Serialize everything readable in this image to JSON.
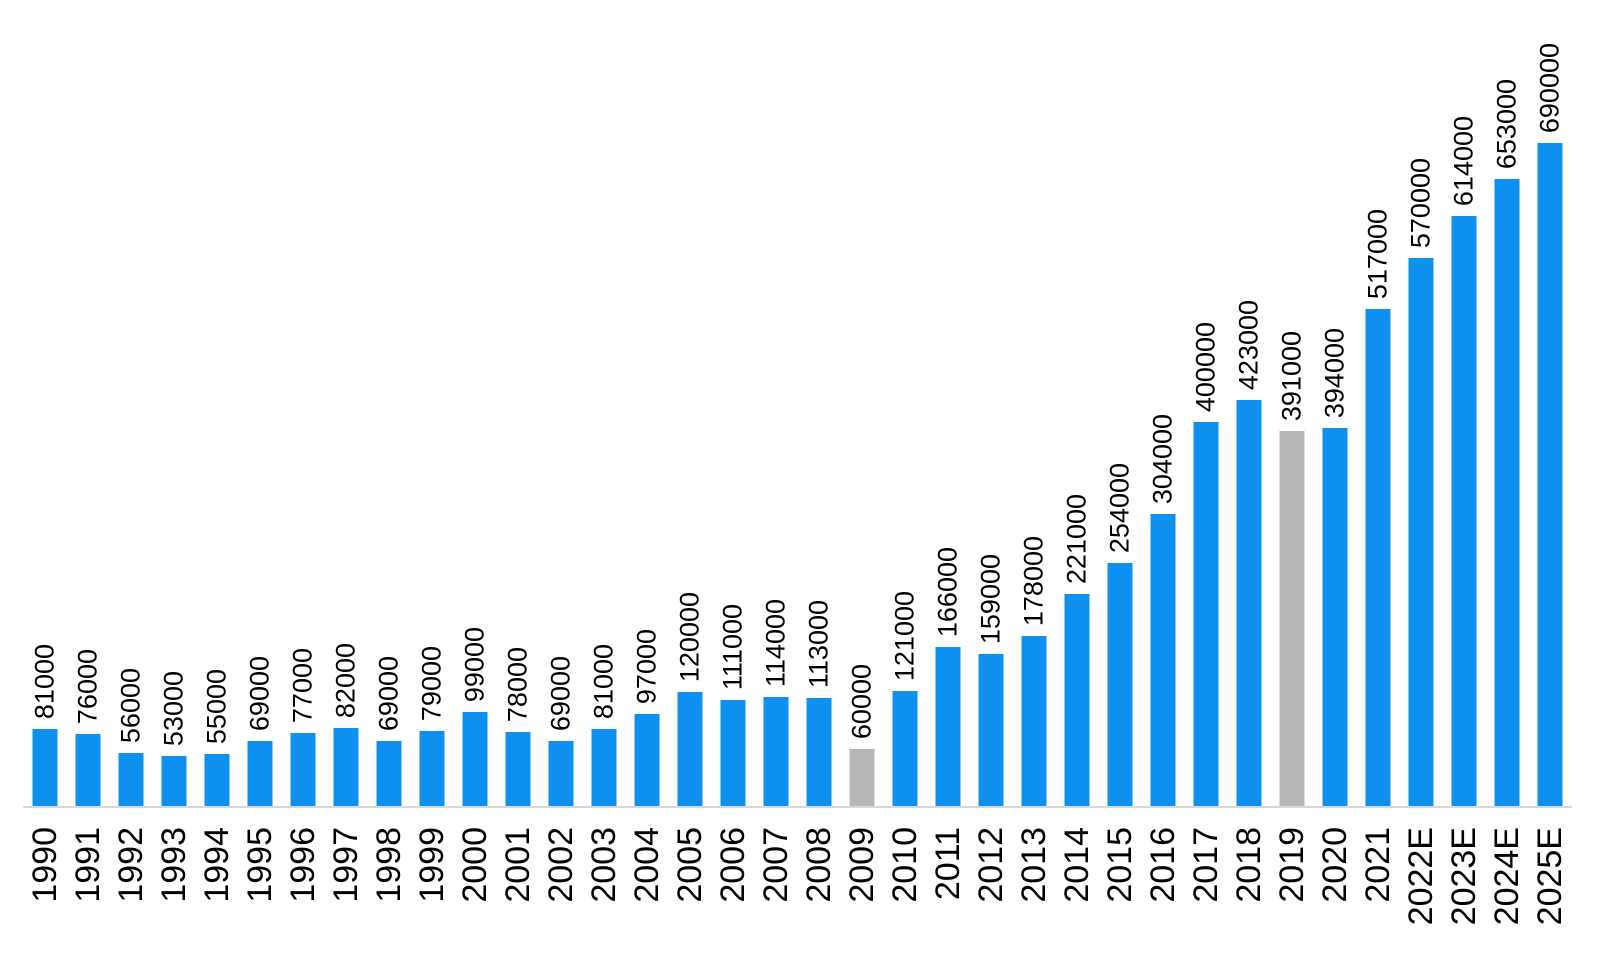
{
  "chart_data": {
    "type": "bar",
    "title": "",
    "subtitle": "",
    "xlabel": "",
    "ylabel": "",
    "categories": [
      "1990",
      "1991",
      "1992",
      "1993",
      "1994",
      "1995",
      "1996",
      "1997",
      "1998",
      "1999",
      "2000",
      "2001",
      "2002",
      "2003",
      "2004",
      "2005",
      "2006",
      "2007",
      "2008",
      "2009",
      "2010",
      "2011",
      "2012",
      "2013",
      "2014",
      "2015",
      "2016",
      "2017",
      "2018",
      "2019",
      "2020",
      "2021",
      "2022E",
      "2023E",
      "2024E",
      "2025E"
    ],
    "values": [
      81000,
      76000,
      56000,
      53000,
      55000,
      69000,
      77000,
      82000,
      69000,
      79000,
      99000,
      78000,
      69000,
      81000,
      97000,
      120000,
      111000,
      114000,
      113000,
      60000,
      121000,
      166000,
      159000,
      178000,
      221000,
      254000,
      304000,
      400000,
      423000,
      391000,
      394000,
      517000,
      570000,
      614000,
      653000,
      690000
    ],
    "highlighted_categories": [
      "2009",
      "2019"
    ],
    "data_labels_visible": true,
    "data_label_rotation_degrees": 90,
    "category_label_rotation_degrees": 90,
    "legend": "none",
    "grid": "off",
    "y_axis_visible": false,
    "x_axis_line_visible": true,
    "ylim": [
      0,
      690000
    ],
    "colors": {
      "bar": "#0E90F0",
      "highlight_bar": "#B7B7B7",
      "axis_line": "#D8D8D8",
      "label_text": "#000000",
      "background": "#FFFFFF"
    }
  }
}
